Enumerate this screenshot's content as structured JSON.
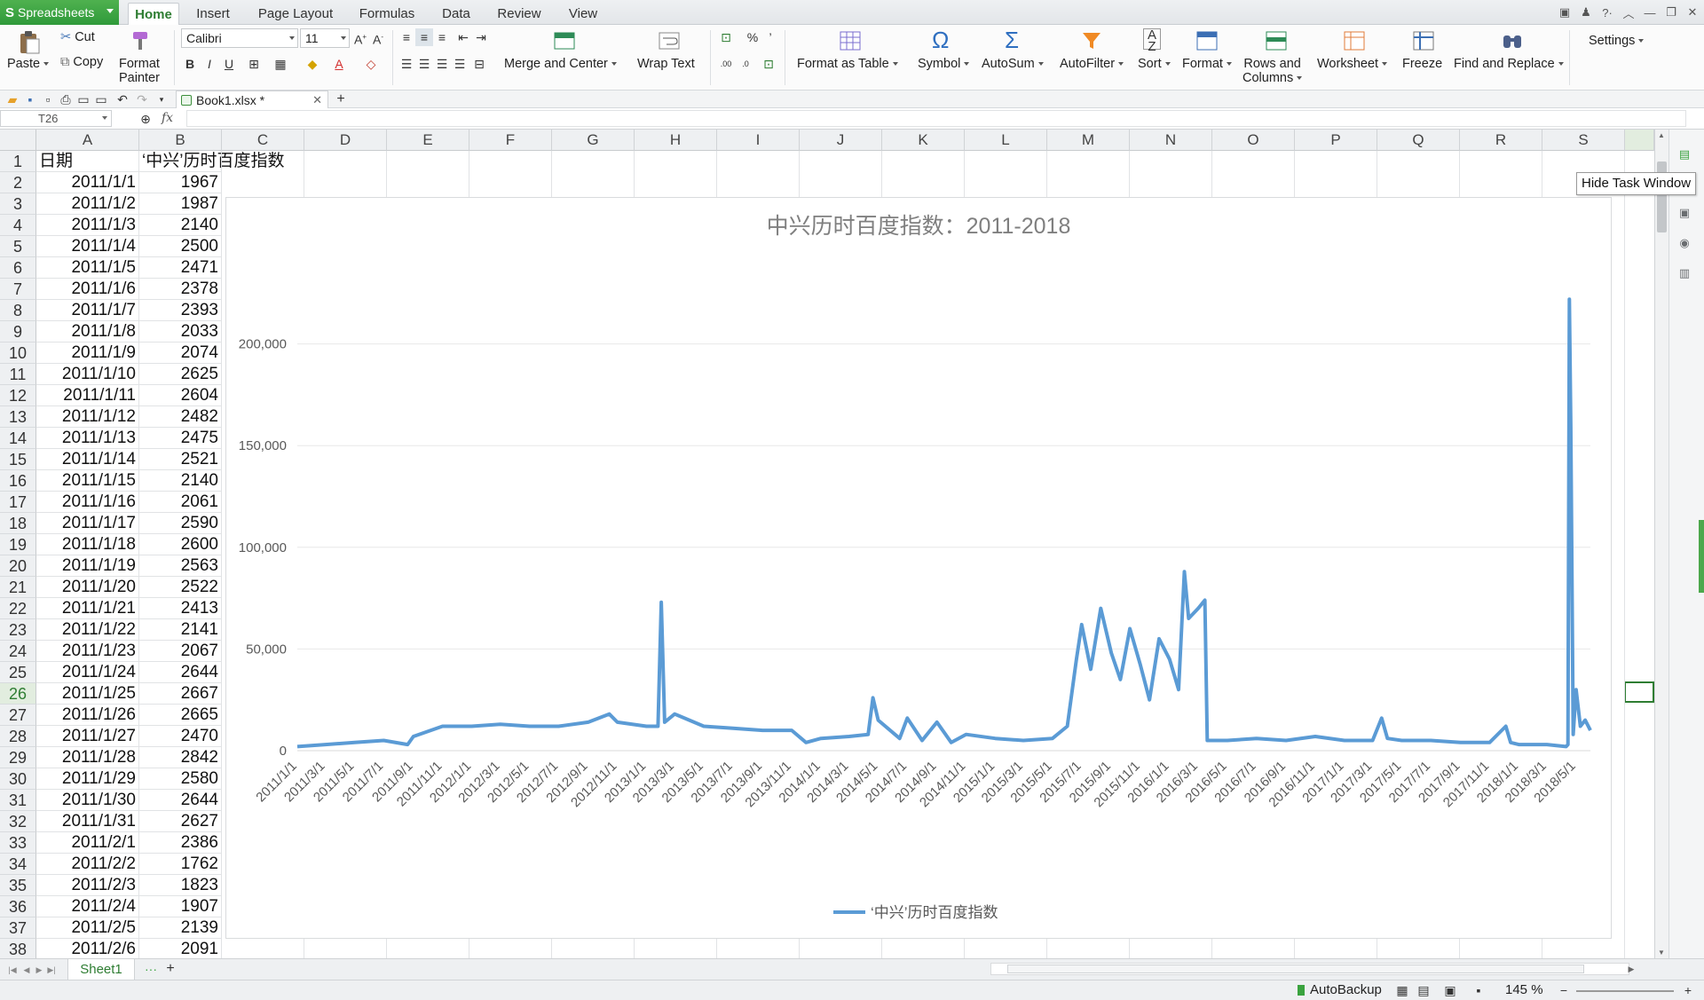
{
  "app": {
    "name": "Spreadsheets",
    "accent": "#3aa33f"
  },
  "menu_tabs": [
    "Home",
    "Insert",
    "Page Layout",
    "Formulas",
    "Data",
    "Review",
    "View"
  ],
  "active_tab": "Home",
  "ribbon": {
    "paste": "Paste",
    "cut": "Cut",
    "copy": "Copy",
    "format_painter_1": "Format",
    "format_painter_2": "Painter",
    "font_name": "Calibri",
    "font_size": "11",
    "bold": "B",
    "italic": "I",
    "underline": "U",
    "merge_center": "Merge and Center",
    "wrap_text": "Wrap Text",
    "percent": "%",
    "comma": "’",
    "format_table": "Format as Table",
    "symbol": "Symbol",
    "autosum": "AutoSum",
    "autofilter": "AutoFilter",
    "sort": "Sort",
    "format": "Format",
    "rows_cols_1": "Rows and",
    "rows_cols_2": "Columns",
    "worksheet": "Worksheet",
    "freeze": "Freeze",
    "find_replace": "Find and Replace",
    "settings": "Settings"
  },
  "document_tab": "Book1.xlsx *",
  "formula_bar": {
    "name_box": "T26",
    "fx": "fx",
    "value": ""
  },
  "columns": [
    "A",
    "B",
    "C",
    "D",
    "E",
    "F",
    "G",
    "H",
    "I",
    "J",
    "K",
    "L",
    "M",
    "N",
    "O",
    "P",
    "Q",
    "R",
    "S"
  ],
  "header_row": {
    "a": "日期",
    "b": "‘中兴’历时百度指数"
  },
  "rows": [
    [
      "2011/1/1",
      "1967"
    ],
    [
      "2011/1/2",
      "1987"
    ],
    [
      "2011/1/3",
      "2140"
    ],
    [
      "2011/1/4",
      "2500"
    ],
    [
      "2011/1/5",
      "2471"
    ],
    [
      "2011/1/6",
      "2378"
    ],
    [
      "2011/1/7",
      "2393"
    ],
    [
      "2011/1/8",
      "2033"
    ],
    [
      "2011/1/9",
      "2074"
    ],
    [
      "2011/1/10",
      "2625"
    ],
    [
      "2011/1/11",
      "2604"
    ],
    [
      "2011/1/12",
      "2482"
    ],
    [
      "2011/1/13",
      "2475"
    ],
    [
      "2011/1/14",
      "2521"
    ],
    [
      "2011/1/15",
      "2140"
    ],
    [
      "2011/1/16",
      "2061"
    ],
    [
      "2011/1/17",
      "2590"
    ],
    [
      "2011/1/18",
      "2600"
    ],
    [
      "2011/1/19",
      "2563"
    ],
    [
      "2011/1/20",
      "2522"
    ],
    [
      "2011/1/21",
      "2413"
    ],
    [
      "2011/1/22",
      "2141"
    ],
    [
      "2011/1/23",
      "2067"
    ],
    [
      "2011/1/24",
      "2644"
    ],
    [
      "2011/1/25",
      "2667"
    ],
    [
      "2011/1/26",
      "2665"
    ],
    [
      "2011/1/27",
      "2470"
    ],
    [
      "2011/1/28",
      "2842"
    ],
    [
      "2011/1/29",
      "2580"
    ],
    [
      "2011/1/30",
      "2644"
    ],
    [
      "2011/1/31",
      "2627"
    ],
    [
      "2011/2/1",
      "2386"
    ],
    [
      "2011/2/2",
      "1762"
    ],
    [
      "2011/2/3",
      "1823"
    ],
    [
      "2011/2/4",
      "1907"
    ],
    [
      "2011/2/5",
      "2139"
    ],
    [
      "2011/2/6",
      "2091"
    ]
  ],
  "selected_row": 26,
  "tooltip": "Hide Task Window",
  "sheet_tab": "Sheet1",
  "status": {
    "autobackup": "AutoBackup",
    "zoom": "145 %"
  },
  "chart_data": {
    "type": "line",
    "title": "中兴历时百度指数：2011-2018",
    "legend": "‘中兴’历时百度指数",
    "legend_position": "bottom",
    "line_color": "#5b9bd5",
    "ylim": [
      0,
      250000
    ],
    "yticks": [
      0,
      50000,
      100000,
      150000,
      200000
    ],
    "ytick_labels": [
      "0",
      "50,000",
      "100,000",
      "150,000",
      "200,000"
    ],
    "grid": true,
    "xtick_labels": [
      "2011/1/1",
      "2011/3/1",
      "2011/5/1",
      "2011/7/1",
      "2011/9/1",
      "2011/11/1",
      "2012/1/1",
      "2012/3/1",
      "2012/5/1",
      "2012/7/1",
      "2012/9/1",
      "2012/11/1",
      "2013/1/1",
      "2013/3/1",
      "2013/5/1",
      "2013/7/1",
      "2013/9/1",
      "2013/11/1",
      "2014/1/1",
      "2014/3/1",
      "2014/5/1",
      "2014/7/1",
      "2014/9/1",
      "2014/11/1",
      "2015/1/1",
      "2015/3/1",
      "2015/5/1",
      "2015/7/1",
      "2015/9/1",
      "2015/11/1",
      "2016/1/1",
      "2016/3/1",
      "2016/5/1",
      "2016/7/1",
      "2016/9/1",
      "2016/11/1",
      "2017/1/1",
      "2017/3/1",
      "2017/5/1",
      "2017/7/1",
      "2017/9/1",
      "2017/11/1",
      "2018/1/1",
      "2018/3/1",
      "2018/5/1"
    ],
    "series": [
      {
        "x": [
          "2011/1/1",
          "2011/3/1",
          "2011/5/1",
          "2011/7/1",
          "2011/8/20",
          "2011/9/1",
          "2011/11/1",
          "2012/1/1",
          "2012/3/1",
          "2012/5/1",
          "2012/7/1",
          "2012/9/1",
          "2012/10/15",
          "2012/11/1",
          "2013/1/1",
          "2013/1/25",
          "2013/2/1",
          "2013/2/8",
          "2013/3/1",
          "2013/5/1",
          "2013/7/1",
          "2013/9/1",
          "2013/11/1",
          "2013/12/1",
          "2014/1/1",
          "2014/3/1",
          "2014/4/10",
          "2014/4/20",
          "2014/5/1",
          "2014/6/15",
          "2014/7/1",
          "2014/8/1",
          "2014/9/1",
          "2014/10/1",
          "2014/11/1",
          "2015/1/1",
          "2015/3/1",
          "2015/5/1",
          "2015/6/1",
          "2015/6/20",
          "2015/7/1",
          "2015/7/20",
          "2015/8/10",
          "2015/9/1",
          "2015/9/20",
          "2015/10/10",
          "2015/11/1",
          "2015/11/20",
          "2015/12/10",
          "2016/1/1",
          "2016/1/20",
          "2016/2/1",
          "2016/2/10",
          "2016/3/1",
          "2016/3/15",
          "2016/3/20",
          "2016/5/1",
          "2016/7/1",
          "2016/9/1",
          "2016/11/1",
          "2017/1/1",
          "2017/3/1",
          "2017/3/20",
          "2017/4/1",
          "2017/5/1",
          "2017/7/1",
          "2017/9/1",
          "2017/11/1",
          "2017/12/5",
          "2017/12/15",
          "2018/1/1",
          "2018/3/1",
          "2018/4/10",
          "2018/4/14",
          "2018/4/17",
          "2018/4/20",
          "2018/4/25",
          "2018/5/1",
          "2018/5/10",
          "2018/5/20",
          "2018/5/31"
        ],
        "y": [
          2000,
          3000,
          4000,
          5000,
          3000,
          7000,
          12000,
          12000,
          13000,
          12000,
          12000,
          14000,
          18000,
          14000,
          12000,
          12000,
          73000,
          14000,
          18000,
          12000,
          11000,
          10000,
          10000,
          4000,
          6000,
          7000,
          8000,
          26000,
          15000,
          6000,
          16000,
          5000,
          14000,
          4000,
          8000,
          6000,
          5000,
          6000,
          12000,
          45000,
          62000,
          40000,
          70000,
          48000,
          35000,
          60000,
          42000,
          25000,
          55000,
          45000,
          30000,
          88000,
          65000,
          70000,
          74000,
          5000,
          5000,
          6000,
          5000,
          7000,
          5000,
          5000,
          16000,
          6000,
          5000,
          5000,
          4000,
          4000,
          12000,
          4000,
          3000,
          3000,
          2000,
          3000,
          222000,
          160000,
          8000,
          30000,
          12000,
          15000,
          10000
        ]
      }
    ]
  }
}
